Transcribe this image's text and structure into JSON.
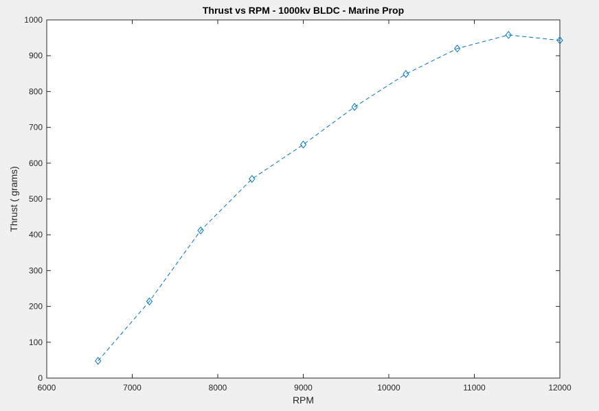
{
  "chart_data": {
    "type": "line",
    "title": "Thrust vs RPM - 1000kv BLDC - Marine Prop",
    "xlabel": "RPM",
    "ylabel": "Thrust ( grams)",
    "xlim": [
      6000,
      12000
    ],
    "ylim": [
      0,
      1000
    ],
    "xticks": [
      6000,
      7000,
      8000,
      9000,
      10000,
      11000,
      12000
    ],
    "yticks": [
      0,
      100,
      200,
      300,
      400,
      500,
      600,
      700,
      800,
      900,
      1000
    ],
    "grid": false,
    "line_style": "dashed",
    "marker": "diamond",
    "series": [
      {
        "color": "#0072bd",
        "x": [
          6600,
          7200,
          7800,
          8400,
          9000,
          9600,
          10200,
          10800,
          11400,
          12000
        ],
        "y": [
          48,
          214,
          412,
          556,
          652,
          757,
          849,
          920,
          958,
          943
        ]
      }
    ]
  }
}
